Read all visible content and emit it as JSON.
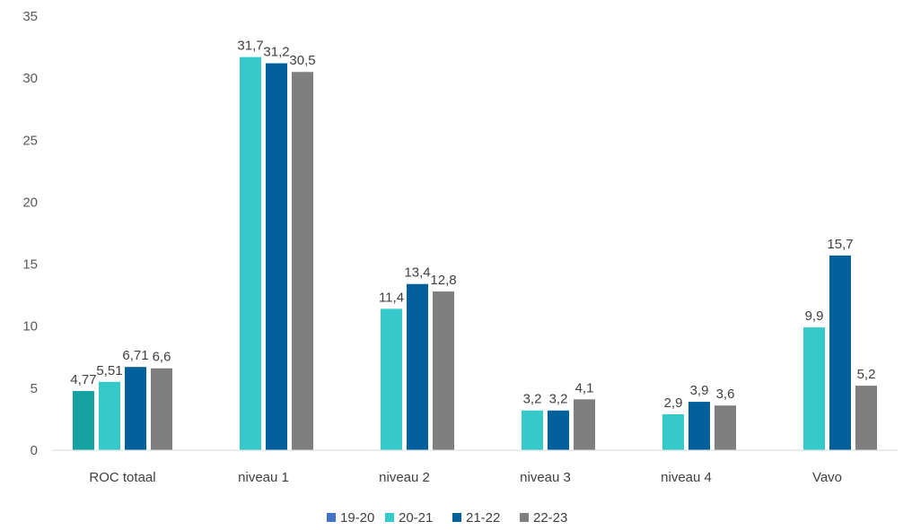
{
  "chart_data": {
    "type": "bar",
    "categories": [
      "ROC totaal",
      "niveau 1",
      "niveau 2",
      "niveau 3",
      "niveau 4",
      "Vavo"
    ],
    "series": [
      {
        "name": "19-20",
        "color": "#4472C4",
        "values": [
          4.77,
          null,
          null,
          null,
          null,
          null
        ],
        "labels": [
          "4,77",
          "",
          "",
          "",
          "",
          ""
        ]
      },
      {
        "name": "20-21",
        "color": "#36C9C9",
        "values": [
          5.51,
          31.7,
          11.4,
          3.2,
          2.9,
          9.9
        ],
        "labels": [
          "5,51",
          "31,7",
          "11,4",
          "3,2",
          "2,9",
          "9,9"
        ]
      },
      {
        "name": "21-22",
        "color": "#03609A",
        "values": [
          6.71,
          31.2,
          13.4,
          3.2,
          3.9,
          15.7
        ],
        "labels": [
          "6,71",
          "31,2",
          "13,4",
          "3,2",
          "3,9",
          "15,7"
        ]
      },
      {
        "name": "22-23",
        "color": "#7F7F7F",
        "values": [
          6.6,
          30.5,
          12.8,
          4.1,
          3.6,
          5.2
        ],
        "labels": [
          "6,6",
          "30,5",
          "12,8",
          "4,1",
          "3,6",
          "5,2"
        ]
      }
    ],
    "first_bar_color_override": "#17A2A2",
    "ylim": [
      0,
      35
    ],
    "yticks": [
      "0",
      "5",
      "10",
      "15",
      "20",
      "25",
      "30",
      "35"
    ],
    "grid": false,
    "legend": "bottom",
    "xlabel": "",
    "ylabel": "",
    "title": ""
  }
}
